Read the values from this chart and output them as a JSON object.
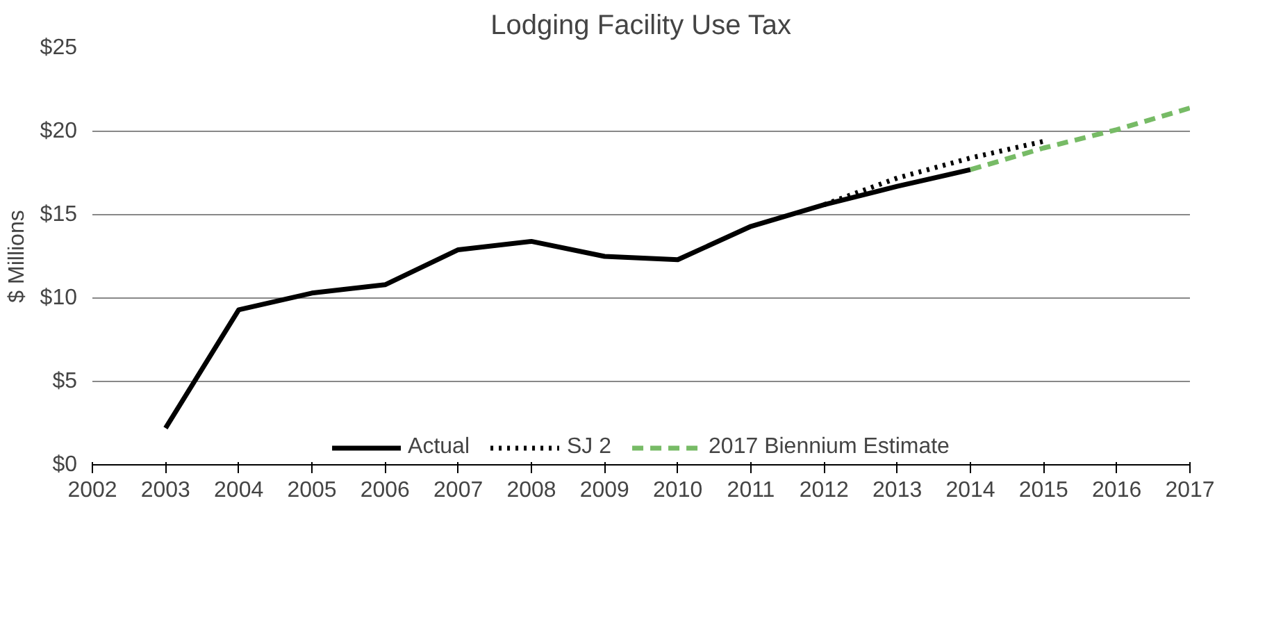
{
  "chart_data": {
    "type": "line",
    "title": "Lodging Facility Use Tax",
    "ylabel": "$ Millions",
    "xlim": [
      2002,
      2017
    ],
    "xticks": [
      2002,
      2003,
      2004,
      2005,
      2006,
      2007,
      2008,
      2009,
      2010,
      2011,
      2012,
      2013,
      2014,
      2015,
      2016,
      2017
    ],
    "ylim": [
      0,
      25
    ],
    "yticks": [
      {
        "value": 0,
        "label": "$0"
      },
      {
        "value": 5,
        "label": "$5"
      },
      {
        "value": 10,
        "label": "$10"
      },
      {
        "value": 15,
        "label": "$15"
      },
      {
        "value": 20,
        "label": "$20"
      },
      {
        "value": 25,
        "label": "$25"
      }
    ],
    "grid": "y",
    "legend": "bottom",
    "marker": "none",
    "series": [
      {
        "name": "Actual",
        "color": "#000000",
        "line_style": "solid",
        "x": [
          2003,
          2004,
          2005,
          2006,
          2007,
          2008,
          2009,
          2010,
          2011,
          2012,
          2013,
          2014
        ],
        "values": [
          2.2,
          9.3,
          10.3,
          10.8,
          12.9,
          13.4,
          12.5,
          12.3,
          14.3,
          15.6,
          16.7,
          17.7
        ]
      },
      {
        "name": "SJ 2",
        "color": "#000000",
        "line_style": "dotted",
        "x": [
          2012,
          2013,
          2014,
          2015
        ],
        "values": [
          15.6,
          17.2,
          18.4,
          19.4
        ]
      },
      {
        "name": "2017 Biennium Estimate",
        "color": "#77bb66",
        "line_style": "dashed",
        "x": [
          2014,
          2015,
          2016,
          2017
        ],
        "values": [
          17.7,
          19.0,
          20.1,
          21.4
        ]
      }
    ]
  }
}
